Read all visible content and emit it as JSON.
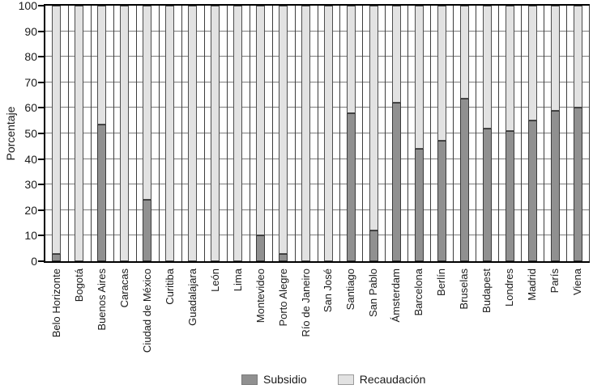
{
  "page": {
    "background": "#ffffff"
  },
  "chart_data": {
    "type": "bar",
    "variant": "stacked-percent",
    "title": "",
    "xlabel": "",
    "ylabel": "Porcentaje",
    "ylim": [
      0,
      100
    ],
    "yticks": [
      0,
      10,
      20,
      30,
      40,
      50,
      60,
      70,
      80,
      90,
      100
    ],
    "grid": "horizontal-and-vertical",
    "legend_position": "bottom-center",
    "categories": [
      "Belo Horizonte",
      "Bogotá",
      "Buenos Aires",
      "Caracas",
      "Ciudad de México",
      "Curitiba",
      "Guadalajara",
      "León",
      "Lima",
      "Montevideo",
      "Porto Alegre",
      "Río de Janeiro",
      "San José",
      "Santiago",
      "San Pablo",
      "Ámsterdam",
      "Barcelona",
      "Berlín",
      "Bruselas",
      "Budapest",
      "Londres",
      "Madrid",
      "París",
      "Viena"
    ],
    "series": [
      {
        "name": "Subsidio",
        "color": "#909090",
        "values": [
          3,
          0,
          53.5,
          0,
          24,
          0,
          0,
          0,
          0,
          10,
          3,
          0,
          0,
          58,
          12,
          62,
          44,
          47,
          63.5,
          52,
          51,
          55,
          59,
          60
        ]
      },
      {
        "name": "Recaudación",
        "color": "#e2e2e2",
        "values": [
          97,
          100,
          46.5,
          100,
          76,
          100,
          100,
          100,
          100,
          90,
          97,
          100,
          100,
          42,
          88,
          38,
          56,
          53,
          36.5,
          48,
          49,
          45,
          41,
          40
        ]
      }
    ],
    "colors": {
      "axis": "#000000",
      "h_gridline": "#7d7d7d",
      "v_gridline": "#3d3d3d",
      "segment_border": "#4d4d4d",
      "text": "#1a1a1a"
    }
  }
}
